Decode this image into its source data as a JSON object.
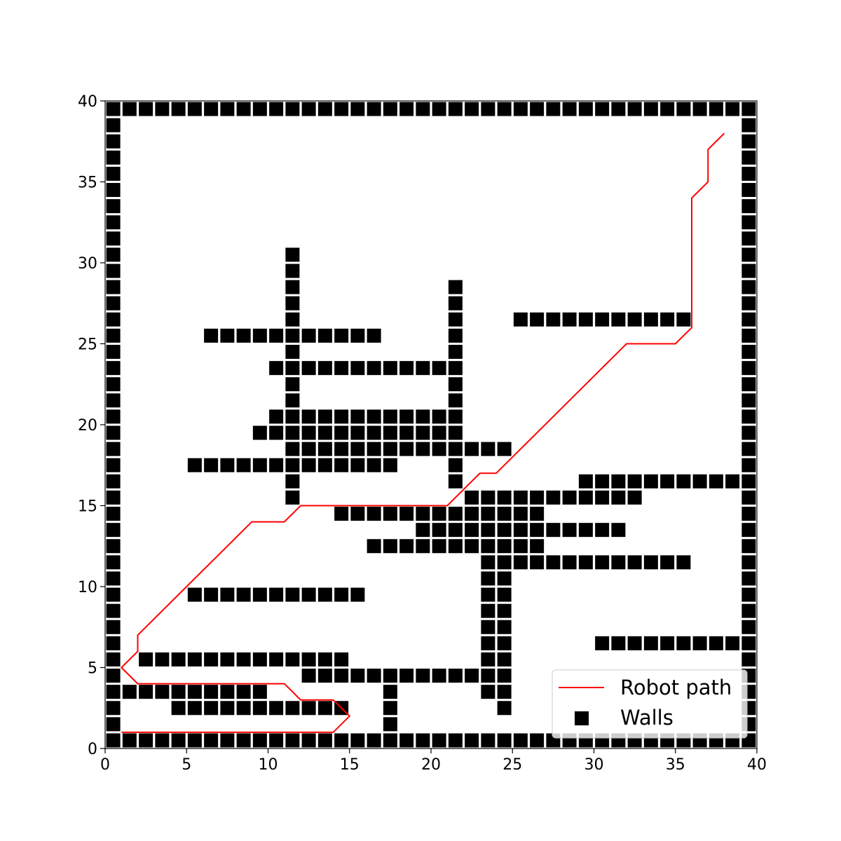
{
  "chart_data": {
    "type": "scatter",
    "title": "",
    "xlabel": "",
    "ylabel": "",
    "xlim": [
      0,
      40
    ],
    "ylim": [
      0,
      40
    ],
    "x_ticks": [
      0,
      5,
      10,
      15,
      20,
      25,
      30,
      35,
      40
    ],
    "y_ticks": [
      0,
      5,
      10,
      15,
      20,
      25,
      30,
      35,
      40
    ],
    "x_tick_labels": [
      "0",
      "5",
      "10",
      "15",
      "20",
      "25",
      "30",
      "35",
      "40"
    ],
    "y_tick_labels": [
      "0",
      "5",
      "10",
      "15",
      "20",
      "25",
      "30",
      "35",
      "40"
    ],
    "grid": false,
    "legend": {
      "position": "lower-right",
      "entries": [
        {
          "label": "Robot path",
          "type": "line",
          "color": "#ff0000"
        },
        {
          "label": "Walls",
          "type": "marker",
          "marker": "square",
          "color": "#000000"
        }
      ]
    },
    "series": [
      {
        "name": "Robot path",
        "type": "line",
        "color": "#ff0000",
        "points": [
          [
            1,
            1
          ],
          [
            14,
            1
          ],
          [
            15,
            2
          ],
          [
            14,
            3
          ],
          [
            12,
            3
          ],
          [
            11,
            4
          ],
          [
            2,
            4
          ],
          [
            1,
            5
          ],
          [
            2,
            6
          ],
          [
            2,
            7
          ],
          [
            9,
            14
          ],
          [
            11,
            14
          ],
          [
            12,
            15
          ],
          [
            21,
            15
          ],
          [
            23,
            17
          ],
          [
            24,
            17
          ],
          [
            32,
            25
          ],
          [
            35,
            25
          ],
          [
            36,
            26
          ],
          [
            36,
            34
          ],
          [
            37,
            35
          ],
          [
            37,
            37
          ],
          [
            38,
            38
          ]
        ]
      },
      {
        "name": "Walls",
        "type": "scatter",
        "marker": "square",
        "color": "#000000",
        "rows": [
          {
            "y": 0,
            "x_ranges": [
              [
                0,
                39
              ]
            ]
          },
          {
            "y": 39,
            "x_ranges": [
              [
                0,
                39
              ]
            ]
          },
          {
            "x": 0,
            "y_ranges": [
              [
                1,
                38
              ]
            ]
          },
          {
            "x": 39,
            "y_ranges": [
              [
                1,
                38
              ]
            ]
          },
          {
            "y": 1,
            "x_ranges": [
              [
                17,
                17
              ]
            ]
          },
          {
            "y": 2,
            "x_ranges": [
              [
                4,
                14
              ],
              [
                17,
                17
              ],
              [
                24,
                24
              ]
            ]
          },
          {
            "y": 3,
            "x_ranges": [
              [
                1,
                9
              ],
              [
                17,
                17
              ],
              [
                23,
                24
              ]
            ]
          },
          {
            "y": 4,
            "x_ranges": [
              [
                12,
                24
              ]
            ]
          },
          {
            "y": 5,
            "x_ranges": [
              [
                2,
                14
              ],
              [
                23,
                24
              ]
            ]
          },
          {
            "y": 6,
            "x_ranges": [
              [
                23,
                24
              ],
              [
                30,
                38
              ]
            ]
          },
          {
            "y": 7,
            "x_ranges": [
              [
                23,
                24
              ]
            ]
          },
          {
            "y": 8,
            "x_ranges": [
              [
                23,
                24
              ]
            ]
          },
          {
            "y": 9,
            "x_ranges": [
              [
                5,
                15
              ],
              [
                23,
                24
              ]
            ]
          },
          {
            "y": 10,
            "x_ranges": [
              [
                23,
                24
              ]
            ]
          },
          {
            "y": 11,
            "x_ranges": [
              [
                23,
                35
              ]
            ]
          },
          {
            "y": 12,
            "x_ranges": [
              [
                16,
                26
              ]
            ]
          },
          {
            "y": 13,
            "x_ranges": [
              [
                19,
                31
              ]
            ]
          },
          {
            "y": 14,
            "x_ranges": [
              [
                14,
                26
              ]
            ]
          },
          {
            "y": 15,
            "x_ranges": [
              [
                11,
                11
              ],
              [
                22,
                32
              ]
            ]
          },
          {
            "y": 16,
            "x_ranges": [
              [
                11,
                11
              ],
              [
                21,
                21
              ],
              [
                29,
                38
              ]
            ]
          },
          {
            "y": 17,
            "x_ranges": [
              [
                5,
                17
              ],
              [
                21,
                21
              ]
            ]
          },
          {
            "y": 18,
            "x_ranges": [
              [
                11,
                24
              ]
            ]
          },
          {
            "y": 19,
            "x_ranges": [
              [
                9,
                21
              ]
            ]
          },
          {
            "y": 20,
            "x_ranges": [
              [
                10,
                21
              ]
            ]
          },
          {
            "y": 21,
            "x_ranges": [
              [
                11,
                11
              ],
              [
                21,
                21
              ]
            ]
          },
          {
            "y": 22,
            "x_ranges": [
              [
                11,
                11
              ],
              [
                21,
                21
              ]
            ]
          },
          {
            "y": 23,
            "x_ranges": [
              [
                10,
                21
              ]
            ]
          },
          {
            "y": 24,
            "x_ranges": [
              [
                11,
                11
              ],
              [
                21,
                21
              ]
            ]
          },
          {
            "y": 25,
            "x_ranges": [
              [
                6,
                16
              ],
              [
                21,
                21
              ]
            ]
          },
          {
            "y": 26,
            "x_ranges": [
              [
                11,
                11
              ],
              [
                21,
                21
              ],
              [
                25,
                35
              ]
            ]
          },
          {
            "y": 27,
            "x_ranges": [
              [
                11,
                11
              ],
              [
                21,
                21
              ]
            ]
          },
          {
            "y": 28,
            "x_ranges": [
              [
                11,
                11
              ],
              [
                21,
                21
              ]
            ]
          },
          {
            "y": 29,
            "x_ranges": [
              [
                11,
                11
              ]
            ]
          },
          {
            "y": 30,
            "x_ranges": [
              [
                11,
                11
              ]
            ]
          }
        ]
      }
    ]
  }
}
